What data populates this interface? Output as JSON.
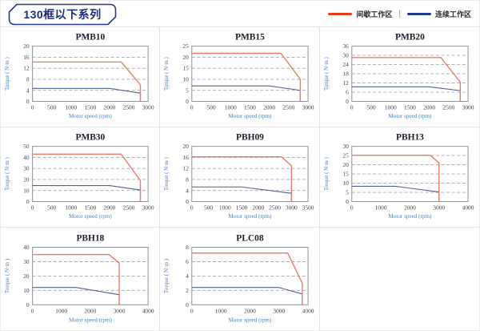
{
  "header": {
    "title": "130框以下系列",
    "legend_separator": "|",
    "legend": [
      {
        "name": "intermittent-zone",
        "label": "间歇工作区",
        "color": "#e83c14"
      },
      {
        "name": "continuous-zone",
        "label": "连续工作区",
        "color": "#1e3a8c"
      }
    ]
  },
  "colors": {
    "chart_red": "#ee7c6b",
    "chart_blue": "#51628f",
    "plot_border": "#8f9298",
    "grid_dash": "#a8a8a8",
    "tick_text": "#45464c",
    "axis_label": "#4e80c0",
    "title_text": "#1c1e2a"
  },
  "chart_data": [
    {
      "type": "line",
      "title": "PMB10",
      "xlabel": "Motor speed (rpm)",
      "ylabel": "Torque ( N·m )",
      "xlim": [
        0,
        3000
      ],
      "xticks": [
        0,
        500,
        1000,
        1500,
        2000,
        2500,
        3000
      ],
      "ylim": [
        0,
        20
      ],
      "yticks": [
        0,
        4,
        8,
        12,
        16,
        20
      ],
      "series": [
        {
          "name": "间歇工作区",
          "color_key": "chart_red",
          "points": [
            [
              0,
              14.3
            ],
            [
              2300,
              14.3
            ],
            [
              2800,
              6
            ],
            [
              2800,
              0
            ]
          ]
        },
        {
          "name": "连续工作区",
          "color_key": "chart_blue",
          "points": [
            [
              0,
              4.7
            ],
            [
              2000,
              4.7
            ],
            [
              2800,
              3
            ],
            [
              2800,
              0
            ]
          ]
        }
      ]
    },
    {
      "type": "line",
      "title": "PMB15",
      "xlabel": "Motor speed (rpm)",
      "ylabel": "Torque ( N·m )",
      "xlim": [
        0,
        3000
      ],
      "xticks": [
        0,
        500,
        1000,
        1500,
        2000,
        2500,
        3000
      ],
      "ylim": [
        0,
        25
      ],
      "yticks": [
        0,
        5,
        10,
        15,
        20,
        25
      ],
      "series": [
        {
          "name": "间歇工作区",
          "color_key": "chart_red",
          "points": [
            [
              0,
              21.8
            ],
            [
              2300,
              21.8
            ],
            [
              2800,
              10
            ],
            [
              2800,
              0
            ]
          ]
        },
        {
          "name": "连续工作区",
          "color_key": "chart_blue",
          "points": [
            [
              0,
              7
            ],
            [
              2000,
              7
            ],
            [
              2800,
              5
            ],
            [
              2800,
              0
            ]
          ]
        }
      ]
    },
    {
      "type": "line",
      "title": "PMB20",
      "xlabel": "Motor speed (rpm)",
      "ylabel": "Torque ( N·m )",
      "xlim": [
        0,
        3000
      ],
      "xticks": [
        0,
        500,
        1000,
        1500,
        2000,
        2500,
        3000
      ],
      "ylim": [
        0,
        36
      ],
      "yticks": [
        0,
        6,
        12,
        18,
        24,
        30,
        36
      ],
      "series": [
        {
          "name": "间歇工作区",
          "color_key": "chart_red",
          "points": [
            [
              0,
              28.6
            ],
            [
              2300,
              28.6
            ],
            [
              2800,
              12.5
            ],
            [
              2800,
              0
            ]
          ]
        },
        {
          "name": "连续工作区",
          "color_key": "chart_blue",
          "points": [
            [
              0,
              9.5
            ],
            [
              2000,
              9.5
            ],
            [
              2800,
              7
            ],
            [
              2800,
              0
            ]
          ]
        }
      ]
    },
    {
      "type": "line",
      "title": "PMB30",
      "xlabel": "Motor speed (rpm)",
      "ylabel": "Torque ( N·m )",
      "xlim": [
        0,
        3000
      ],
      "xticks": [
        0,
        500,
        1000,
        1500,
        2000,
        2500,
        3000
      ],
      "ylim": [
        0,
        50
      ],
      "yticks": [
        0,
        10,
        20,
        30,
        40,
        50
      ],
      "series": [
        {
          "name": "间歇工作区",
          "color_key": "chart_red",
          "points": [
            [
              0,
              43
            ],
            [
              2300,
              43
            ],
            [
              2800,
              19
            ],
            [
              2800,
              0
            ]
          ]
        },
        {
          "name": "连续工作区",
          "color_key": "chart_blue",
          "points": [
            [
              0,
              14.5
            ],
            [
              2000,
              14.5
            ],
            [
              2800,
              10.5
            ],
            [
              2800,
              0
            ]
          ]
        }
      ]
    },
    {
      "type": "line",
      "title": "PBH09",
      "xlabel": "Motor speed (rpm)",
      "ylabel": "Torque ( N·m )",
      "xlim": [
        0,
        3500
      ],
      "xticks": [
        0,
        500,
        1000,
        1500,
        2000,
        2500,
        3000,
        3500
      ],
      "ylim": [
        0,
        20
      ],
      "yticks": [
        0,
        4,
        8,
        12,
        16,
        20
      ],
      "series": [
        {
          "name": "间歇工作区",
          "color_key": "chart_red",
          "points": [
            [
              0,
              16.2
            ],
            [
              2700,
              16.2
            ],
            [
              3000,
              13
            ],
            [
              3000,
              0
            ]
          ]
        },
        {
          "name": "连续工作区",
          "color_key": "chart_blue",
          "points": [
            [
              0,
              5.3
            ],
            [
              1500,
              5.3
            ],
            [
              3000,
              3
            ],
            [
              3000,
              0
            ]
          ]
        }
      ]
    },
    {
      "type": "line",
      "title": "PBH13",
      "xlabel": "Motor speed (rpm)",
      "ylabel": "Torque ( N·m )",
      "xlim": [
        0,
        4000
      ],
      "xticks": [
        0,
        1000,
        2000,
        3000,
        4000
      ],
      "ylim": [
        0,
        30
      ],
      "yticks": [
        0,
        5,
        10,
        15,
        20,
        25,
        30
      ],
      "series": [
        {
          "name": "间歇工作区",
          "color_key": "chart_red",
          "points": [
            [
              0,
              25.2
            ],
            [
              2700,
              25.2
            ],
            [
              3000,
              21
            ],
            [
              3000,
              0
            ]
          ]
        },
        {
          "name": "连续工作区",
          "color_key": "chart_blue",
          "points": [
            [
              0,
              8.3
            ],
            [
              1500,
              8.3
            ],
            [
              3000,
              5.2
            ],
            [
              3000,
              0
            ]
          ]
        }
      ]
    },
    {
      "type": "line",
      "title": "PBH18",
      "xlabel": "Motor speed (rpm)",
      "ylabel": "Torque ( N·m )",
      "xlim": [
        0,
        4000
      ],
      "xticks": [
        0,
        1000,
        2000,
        3000,
        4000
      ],
      "ylim": [
        0,
        40
      ],
      "yticks": [
        0,
        10,
        20,
        30,
        40
      ],
      "series": [
        {
          "name": "间歇工作区",
          "color_key": "chart_red",
          "points": [
            [
              0,
              35
            ],
            [
              2650,
              35
            ],
            [
              3000,
              29
            ],
            [
              3000,
              0
            ]
          ]
        },
        {
          "name": "连续工作区",
          "color_key": "chart_blue",
          "points": [
            [
              0,
              12
            ],
            [
              1500,
              12
            ],
            [
              3000,
              7
            ],
            [
              3000,
              0
            ]
          ]
        }
      ]
    },
    {
      "type": "line",
      "title": "PLC08",
      "xlabel": "Motor speed (rpm)",
      "ylabel": "Torque ( N·m )",
      "xlim": [
        0,
        4000
      ],
      "xticks": [
        0,
        1000,
        2000,
        3000,
        4000
      ],
      "ylim": [
        0,
        8
      ],
      "yticks": [
        0,
        2,
        4,
        6,
        8
      ],
      "series": [
        {
          "name": "间歇工作区",
          "color_key": "chart_red",
          "points": [
            [
              0,
              7.2
            ],
            [
              3300,
              7.2
            ],
            [
              3800,
              3
            ],
            [
              3800,
              0
            ]
          ]
        },
        {
          "name": "连续工作区",
          "color_key": "chart_blue",
          "points": [
            [
              0,
              2.4
            ],
            [
              3000,
              2.4
            ],
            [
              3800,
              1.5
            ],
            [
              3800,
              0
            ]
          ]
        }
      ]
    }
  ]
}
